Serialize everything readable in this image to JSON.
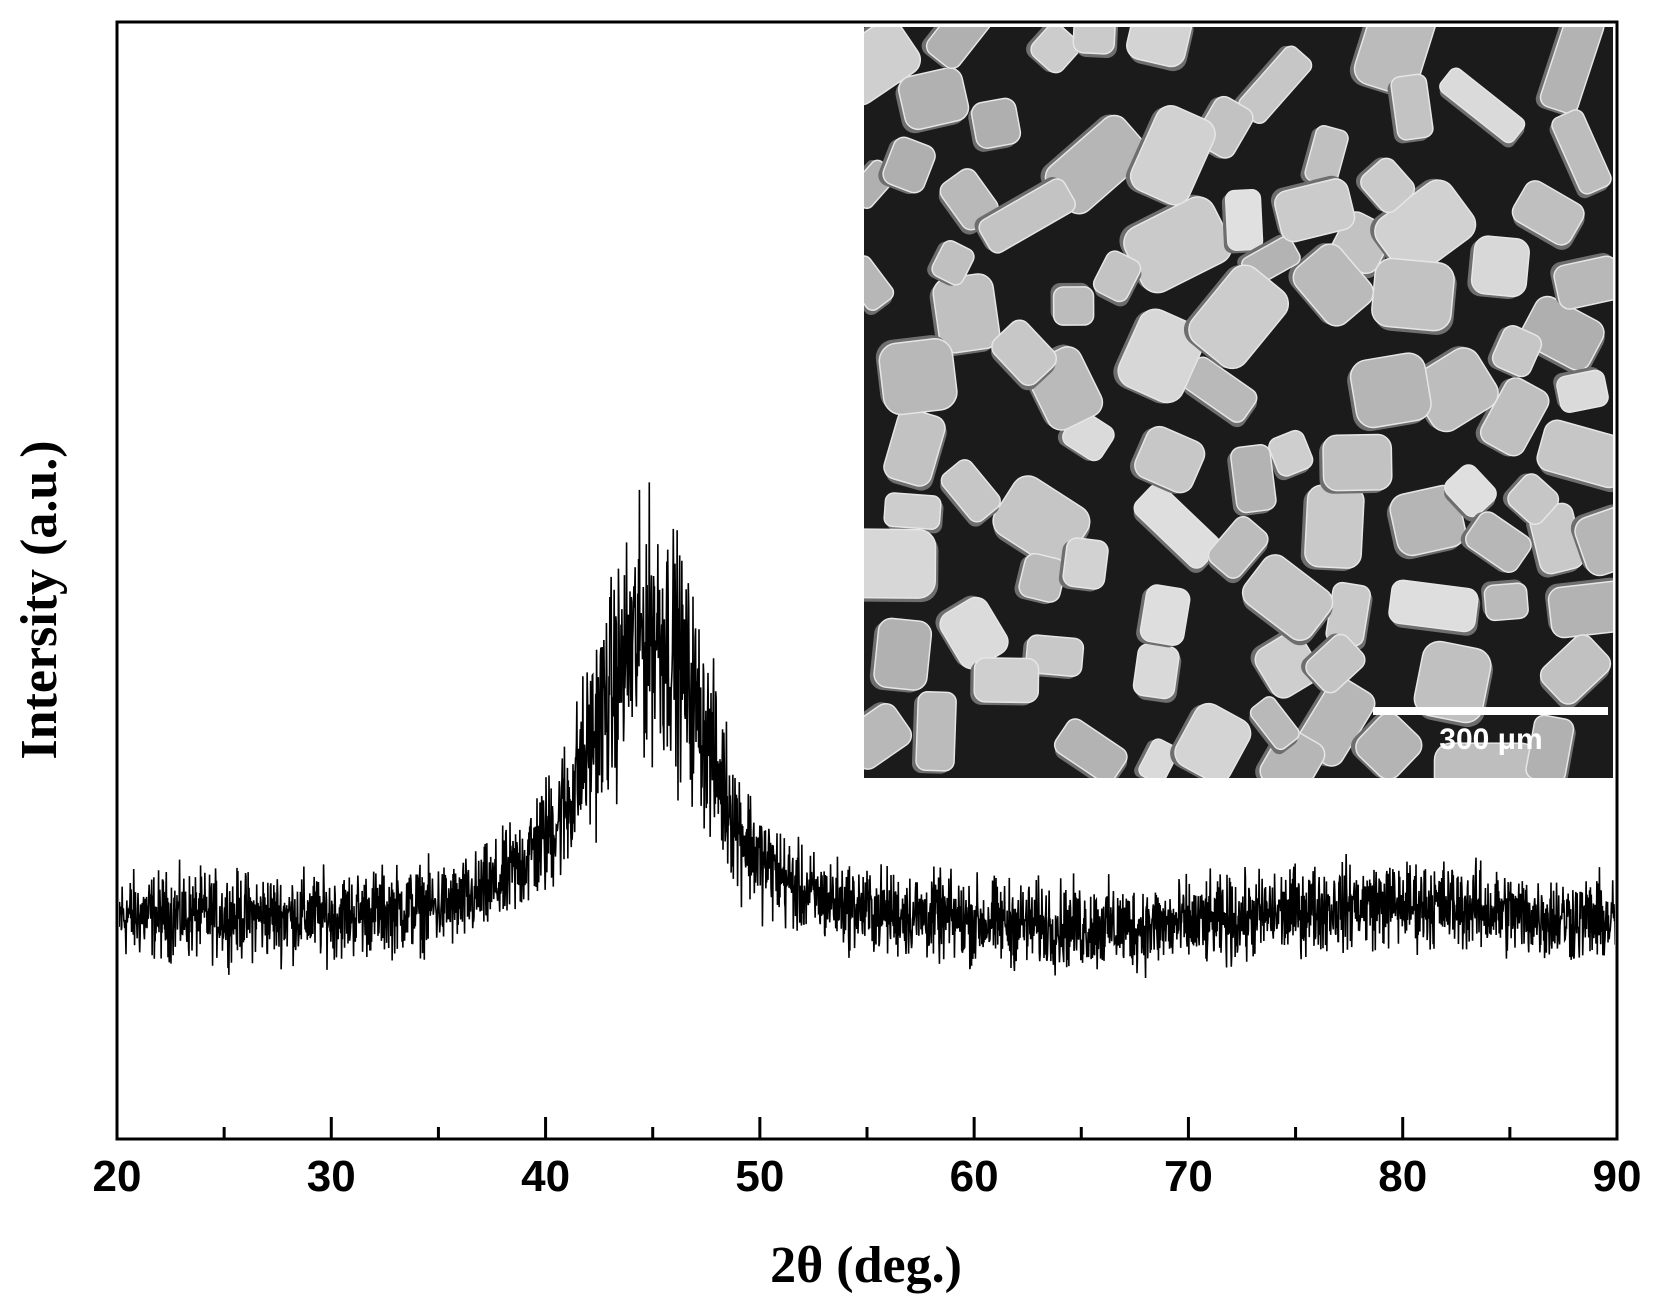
{
  "chart_data": {
    "type": "line",
    "title": "",
    "xlabel": "2θ (deg.)",
    "ylabel": "Intersity (a.u.)",
    "xlim": [
      20,
      90
    ],
    "ylim": [
      0,
      100
    ],
    "x_ticks": [
      20,
      30,
      40,
      50,
      60,
      70,
      80,
      90
    ],
    "x_minor_ticks": [
      25,
      35,
      45,
      55,
      65,
      75,
      85
    ],
    "y_tick_labels": false,
    "grid": false,
    "legend": "none",
    "series": [
      {
        "color": "#000000",
        "baseline": 20,
        "noise_amplitude": 3.5,
        "profile": [
          {
            "x": 20,
            "y": 20
          },
          {
            "x": 25,
            "y": 20
          },
          {
            "x": 30,
            "y": 20
          },
          {
            "x": 33,
            "y": 20.5
          },
          {
            "x": 36,
            "y": 21
          },
          {
            "x": 38,
            "y": 23
          },
          {
            "x": 40,
            "y": 27
          },
          {
            "x": 41,
            "y": 30
          },
          {
            "x": 42,
            "y": 35
          },
          {
            "x": 43,
            "y": 40
          },
          {
            "x": 44,
            "y": 44
          },
          {
            "x": 45,
            "y": 46
          },
          {
            "x": 46,
            "y": 44
          },
          {
            "x": 47,
            "y": 39
          },
          {
            "x": 48,
            "y": 33
          },
          {
            "x": 49,
            "y": 28
          },
          {
            "x": 50,
            "y": 25
          },
          {
            "x": 52,
            "y": 22
          },
          {
            "x": 55,
            "y": 20.5
          },
          {
            "x": 60,
            "y": 19.5
          },
          {
            "x": 65,
            "y": 19
          },
          {
            "x": 68,
            "y": 19
          },
          {
            "x": 72,
            "y": 19.5
          },
          {
            "x": 75,
            "y": 20.5
          },
          {
            "x": 78,
            "y": 21
          },
          {
            "x": 82,
            "y": 21
          },
          {
            "x": 86,
            "y": 20
          },
          {
            "x": 90,
            "y": 19.5
          }
        ]
      }
    ]
  },
  "inset": {
    "kind": "SEM micrograph",
    "scale_bar_label": "300 μm"
  }
}
